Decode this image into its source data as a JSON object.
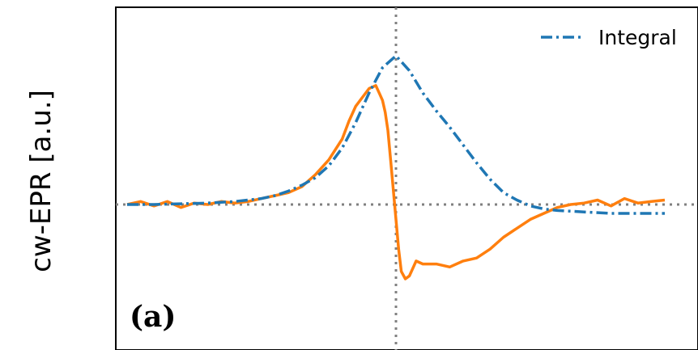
{
  "chart_data": {
    "type": "line",
    "title": "",
    "xlabel": "",
    "ylabel": "cw-EPR [a.u.]",
    "panel_label": "(a)",
    "xlim": [
      -1.0,
      1.0
    ],
    "ylim": [
      -0.85,
      1.0
    ],
    "reference_lines": {
      "x": 0,
      "y": 0
    },
    "legend": {
      "position": "top-right",
      "entries": [
        "Integral"
      ]
    },
    "series": [
      {
        "name": "",
        "style": "solid",
        "color": "#ff7f0e",
        "x": [
          -1.0,
          -0.95,
          -0.9,
          -0.85,
          -0.8,
          -0.75,
          -0.7,
          -0.65,
          -0.6,
          -0.55,
          -0.5,
          -0.45,
          -0.4,
          -0.35,
          -0.3,
          -0.25,
          -0.2,
          -0.175,
          -0.15,
          -0.125,
          -0.1,
          -0.075,
          -0.06,
          -0.05,
          -0.04,
          -0.03,
          -0.02,
          -0.01,
          0.0,
          0.01,
          0.02,
          0.035,
          0.05,
          0.075,
          0.1,
          0.15,
          0.2,
          0.25,
          0.3,
          0.35,
          0.4,
          0.45,
          0.5,
          0.55,
          0.6,
          0.65,
          0.7,
          0.75,
          0.8,
          0.85,
          0.9,
          0.95,
          1.0
        ],
        "values": [
          0.0,
          0.02,
          -0.01,
          0.02,
          -0.02,
          0.01,
          0.0,
          0.02,
          0.01,
          0.02,
          0.04,
          0.06,
          0.08,
          0.12,
          0.2,
          0.3,
          0.44,
          0.56,
          0.66,
          0.72,
          0.78,
          0.8,
          0.74,
          0.7,
          0.62,
          0.5,
          0.3,
          0.1,
          -0.1,
          -0.3,
          -0.45,
          -0.5,
          -0.48,
          -0.38,
          -0.4,
          -0.4,
          -0.42,
          -0.38,
          -0.36,
          -0.3,
          -0.22,
          -0.16,
          -0.1,
          -0.06,
          -0.02,
          0.0,
          0.01,
          0.03,
          -0.01,
          0.04,
          0.01,
          0.02,
          0.03
        ]
      },
      {
        "name": "Integral",
        "style": "dashdot",
        "color": "#1f77b4",
        "x": [
          -1.0,
          -0.9,
          -0.8,
          -0.7,
          -0.6,
          -0.5,
          -0.45,
          -0.4,
          -0.35,
          -0.3,
          -0.25,
          -0.2,
          -0.15,
          -0.1,
          -0.05,
          0.0,
          0.05,
          0.1,
          0.15,
          0.2,
          0.25,
          0.3,
          0.35,
          0.4,
          0.45,
          0.5,
          0.55,
          0.6,
          0.7,
          0.8,
          0.9,
          1.0
        ],
        "values": [
          0.0,
          0.0,
          0.005,
          0.01,
          0.02,
          0.04,
          0.06,
          0.09,
          0.13,
          0.18,
          0.26,
          0.38,
          0.55,
          0.75,
          0.92,
          1.0,
          0.9,
          0.75,
          0.63,
          0.52,
          0.4,
          0.28,
          0.17,
          0.08,
          0.03,
          -0.01,
          -0.03,
          -0.04,
          -0.05,
          -0.06,
          -0.06,
          -0.06
        ]
      }
    ]
  }
}
